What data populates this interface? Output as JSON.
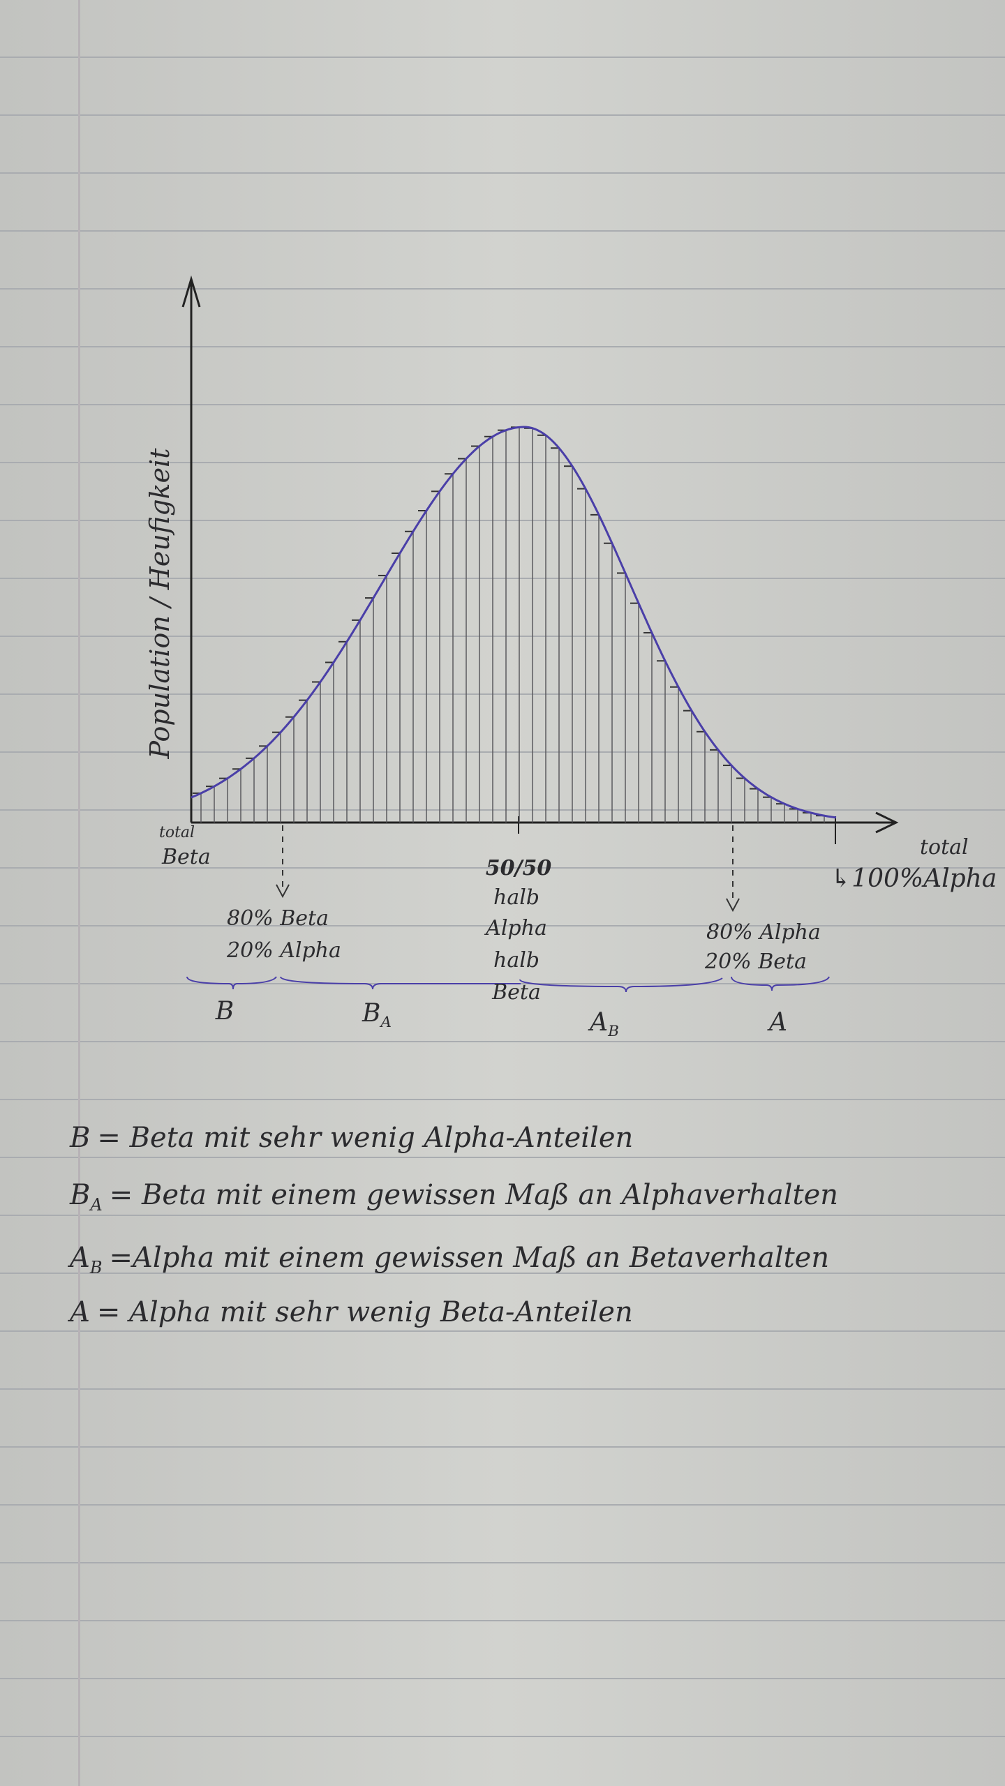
{
  "diagram": {
    "y_axis_label": "Population / Heufigkeit",
    "left_end": {
      "line1": "total",
      "line2": "Beta"
    },
    "center": {
      "ratio": "50/50",
      "line1": "halb",
      "line2": "Alpha",
      "line3": "halb",
      "line4": "Beta"
    },
    "right_end": {
      "line1": "total",
      "line2": "↳100%Alpha"
    },
    "left_marker": {
      "line1": "80% Beta",
      "line2": "20% Alpha"
    },
    "right_marker": {
      "line1": "80% Alpha",
      "line2": "20% Beta"
    },
    "groups": [
      {
        "main": "B"
      },
      {
        "main": "B",
        "sub": "A"
      },
      {
        "main": "A",
        "sub": "B"
      },
      {
        "main": "A"
      }
    ]
  },
  "legend": [
    {
      "main": "B",
      "text": "= Beta mit sehr wenig Alpha-Anteilen"
    },
    {
      "main": "B",
      "sub": "A",
      "text": "= Beta mit einem gewissen Maß an Alphaverhalten"
    },
    {
      "main": "A",
      "sub": "B",
      "text": "=Alpha mit einem gewissen Maß an Betaverhalten"
    },
    {
      "main": "A",
      "text": "= Alpha mit sehr wenig Beta-Anteilen"
    }
  ]
}
